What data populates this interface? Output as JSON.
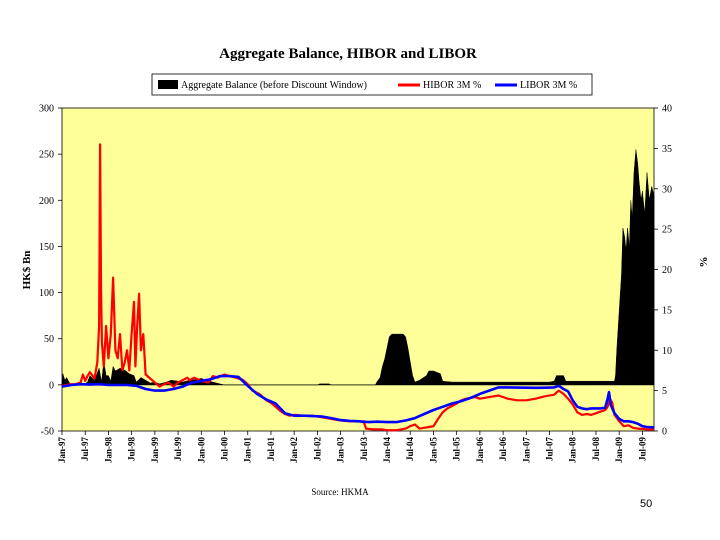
{
  "page_number": "50",
  "chart_data": {
    "type": "area+line",
    "title": "Aggregate Balance, HIBOR and LIBOR",
    "source": "Source: HKMA",
    "ylabel_left": "HK$ Bn",
    "ylabel_right": "%",
    "ylim_left": [
      -50,
      300
    ],
    "ylim_right": [
      0,
      40
    ],
    "yticks_left": [
      "300",
      "250",
      "200",
      "150",
      "100",
      "50",
      "0",
      "-50"
    ],
    "yticks_right": [
      "40",
      "35",
      "30",
      "25",
      "20",
      "15",
      "10",
      "5",
      "0"
    ],
    "x_tick_labels": [
      "Jan-97",
      "Jul-97",
      "Jan-98",
      "Jul-98",
      "Jan-99",
      "Jul-99",
      "Jan-00",
      "Jul-00",
      "Jan-01",
      "Jul-01",
      "Jan-02",
      "Jul-02",
      "Jan-03",
      "Jul-03",
      "Jan-04",
      "Jul-04",
      "Jan-05",
      "Jul-05",
      "Jan-06",
      "Jul-06",
      "Jan-07",
      "Jul-07",
      "Jan-08",
      "Jul-08",
      "Jan-09",
      "Jul-09"
    ],
    "x_range": [
      1997.0,
      2009.75
    ],
    "legend": [
      "Aggregate Balance (before Discount Window)",
      "HIBOR 3M %",
      "LIBOR 3M %"
    ],
    "colors": {
      "aggregate": "#000000",
      "hibor": "#ff0000",
      "libor": "#0000ff",
      "plot_bg": "#ffff99"
    },
    "series": [
      {
        "name": "Aggregate Balance (before Discount Window)",
        "axis": "left",
        "points": [
          [
            1997.0,
            0
          ],
          [
            1997.02,
            12
          ],
          [
            1997.06,
            5
          ],
          [
            1997.1,
            8
          ],
          [
            1997.15,
            3
          ],
          [
            1997.2,
            0
          ],
          [
            1997.45,
            0
          ],
          [
            1997.55,
            3
          ],
          [
            1997.6,
            10
          ],
          [
            1997.7,
            5
          ],
          [
            1997.8,
            18
          ],
          [
            1997.85,
            3
          ],
          [
            1997.9,
            25
          ],
          [
            1997.95,
            10
          ],
          [
            1998.0,
            10
          ],
          [
            1998.05,
            4
          ],
          [
            1998.1,
            20
          ],
          [
            1998.15,
            15
          ],
          [
            1998.25,
            18
          ],
          [
            1998.35,
            16
          ],
          [
            1998.45,
            12
          ],
          [
            1998.55,
            10
          ],
          [
            1998.6,
            3
          ],
          [
            1998.7,
            8
          ],
          [
            1998.8,
            5
          ],
          [
            1998.9,
            2
          ],
          [
            1999.0,
            3
          ],
          [
            1999.1,
            1
          ],
          [
            1999.25,
            3
          ],
          [
            1999.35,
            5
          ],
          [
            1999.5,
            4
          ],
          [
            1999.6,
            3
          ],
          [
            1999.75,
            5
          ],
          [
            1999.9,
            6
          ],
          [
            2000.0,
            7
          ],
          [
            2000.1,
            5
          ],
          [
            2000.25,
            3
          ],
          [
            2000.4,
            1
          ],
          [
            2000.5,
            0
          ],
          [
            2002.5,
            0
          ],
          [
            2002.55,
            1
          ],
          [
            2002.75,
            1
          ],
          [
            2002.8,
            0
          ],
          [
            2003.75,
            0
          ],
          [
            2003.78,
            3
          ],
          [
            2003.85,
            8
          ],
          [
            2003.9,
            20
          ],
          [
            2003.95,
            28
          ],
          [
            2004.0,
            40
          ],
          [
            2004.05,
            52
          ],
          [
            2004.1,
            55
          ],
          [
            2004.35,
            55
          ],
          [
            2004.4,
            52
          ],
          [
            2004.45,
            40
          ],
          [
            2004.5,
            25
          ],
          [
            2004.55,
            10
          ],
          [
            2004.6,
            3
          ],
          [
            2004.7,
            5
          ],
          [
            2004.85,
            10
          ],
          [
            2004.9,
            15
          ],
          [
            2005.0,
            15
          ],
          [
            2005.15,
            12
          ],
          [
            2005.2,
            4
          ],
          [
            2005.4,
            3
          ],
          [
            2005.5,
            3
          ],
          [
            2007.5,
            3
          ],
          [
            2007.6,
            4
          ],
          [
            2007.65,
            10
          ],
          [
            2007.7,
            10
          ],
          [
            2007.8,
            10
          ],
          [
            2007.85,
            4
          ],
          [
            2008.9,
            4
          ],
          [
            2008.92,
            10
          ],
          [
            2008.95,
            40
          ],
          [
            2009.0,
            80
          ],
          [
            2009.05,
            120
          ],
          [
            2009.08,
            170
          ],
          [
            2009.12,
            160
          ],
          [
            2009.15,
            145
          ],
          [
            2009.18,
            170
          ],
          [
            2009.22,
            150
          ],
          [
            2009.25,
            200
          ],
          [
            2009.28,
            180
          ],
          [
            2009.32,
            230
          ],
          [
            2009.36,
            255
          ],
          [
            2009.4,
            240
          ],
          [
            2009.43,
            220
          ],
          [
            2009.47,
            200
          ],
          [
            2009.5,
            210
          ],
          [
            2009.55,
            185
          ],
          [
            2009.6,
            230
          ],
          [
            2009.65,
            200
          ],
          [
            2009.7,
            215
          ],
          [
            2009.75,
            205
          ]
        ]
      },
      {
        "name": "HIBOR 3M %",
        "axis": "right",
        "points": [
          [
            1997.0,
            5.6
          ],
          [
            1997.1,
            5.7
          ],
          [
            1997.2,
            5.8
          ],
          [
            1997.3,
            5.8
          ],
          [
            1997.4,
            6.0
          ],
          [
            1997.45,
            7.0
          ],
          [
            1997.5,
            6.2
          ],
          [
            1997.55,
            6.8
          ],
          [
            1997.6,
            7.3
          ],
          [
            1997.7,
            6.5
          ],
          [
            1997.76,
            8.5
          ],
          [
            1997.8,
            13.0
          ],
          [
            1997.82,
            35.5
          ],
          [
            1997.84,
            18.0
          ],
          [
            1997.86,
            11.0
          ],
          [
            1997.9,
            8.0
          ],
          [
            1997.95,
            13.0
          ],
          [
            1998.0,
            9.0
          ],
          [
            1998.05,
            12.0
          ],
          [
            1998.1,
            19.0
          ],
          [
            1998.15,
            10.0
          ],
          [
            1998.2,
            9.0
          ],
          [
            1998.25,
            12.0
          ],
          [
            1998.3,
            7.5
          ],
          [
            1998.35,
            8.5
          ],
          [
            1998.4,
            10.0
          ],
          [
            1998.45,
            7.5
          ],
          [
            1998.5,
            12.0
          ],
          [
            1998.55,
            16.0
          ],
          [
            1998.58,
            8.0
          ],
          [
            1998.62,
            13.0
          ],
          [
            1998.66,
            17.0
          ],
          [
            1998.7,
            10.0
          ],
          [
            1998.75,
            12.0
          ],
          [
            1998.8,
            7.0
          ],
          [
            1998.9,
            6.5
          ],
          [
            1999.0,
            6.0
          ],
          [
            1999.1,
            5.5
          ],
          [
            1999.2,
            5.8
          ],
          [
            1999.3,
            6.0
          ],
          [
            1999.4,
            5.5
          ],
          [
            1999.5,
            6.0
          ],
          [
            1999.6,
            6.3
          ],
          [
            1999.7,
            6.6
          ],
          [
            1999.75,
            6.3
          ],
          [
            1999.85,
            6.6
          ],
          [
            2000.0,
            6.2
          ],
          [
            2000.15,
            6.0
          ],
          [
            2000.25,
            6.8
          ],
          [
            2000.35,
            6.6
          ],
          [
            2000.5,
            7.0
          ],
          [
            2000.6,
            6.8
          ],
          [
            2000.75,
            6.6
          ],
          [
            2000.9,
            6.3
          ],
          [
            2001.0,
            5.8
          ],
          [
            2001.1,
            5.0
          ],
          [
            2001.25,
            4.6
          ],
          [
            2001.4,
            3.8
          ],
          [
            2001.5,
            3.5
          ],
          [
            2001.6,
            3.0
          ],
          [
            2001.7,
            2.5
          ],
          [
            2001.8,
            2.1
          ],
          [
            2001.9,
            1.9
          ],
          [
            2002.0,
            2.0
          ],
          [
            2002.2,
            1.9
          ],
          [
            2002.4,
            1.9
          ],
          [
            2002.6,
            1.7
          ],
          [
            2002.8,
            1.5
          ],
          [
            2003.0,
            1.3
          ],
          [
            2003.2,
            1.2
          ],
          [
            2003.4,
            1.2
          ],
          [
            2003.5,
            1.1
          ],
          [
            2003.55,
            0.3
          ],
          [
            2003.7,
            0.2
          ],
          [
            2003.9,
            0.2
          ],
          [
            2004.0,
            0.1
          ],
          [
            2004.2,
            0.1
          ],
          [
            2004.4,
            0.3
          ],
          [
            2004.5,
            0.6
          ],
          [
            2004.6,
            0.8
          ],
          [
            2004.7,
            0.3
          ],
          [
            2004.8,
            0.4
          ],
          [
            2004.9,
            0.5
          ],
          [
            2005.0,
            0.6
          ],
          [
            2005.1,
            1.5
          ],
          [
            2005.2,
            2.3
          ],
          [
            2005.3,
            2.8
          ],
          [
            2005.4,
            3.1
          ],
          [
            2005.5,
            3.4
          ],
          [
            2005.6,
            3.8
          ],
          [
            2005.7,
            4.0
          ],
          [
            2005.8,
            4.1
          ],
          [
            2005.9,
            4.2
          ],
          [
            2006.0,
            4.0
          ],
          [
            2006.2,
            4.2
          ],
          [
            2006.4,
            4.4
          ],
          [
            2006.6,
            4.0
          ],
          [
            2006.8,
            3.8
          ],
          [
            2007.0,
            3.8
          ],
          [
            2007.2,
            4.0
          ],
          [
            2007.4,
            4.3
          ],
          [
            2007.6,
            4.5
          ],
          [
            2007.7,
            5.0
          ],
          [
            2007.8,
            4.6
          ],
          [
            2007.9,
            4.0
          ],
          [
            2008.0,
            3.3
          ],
          [
            2008.1,
            2.3
          ],
          [
            2008.2,
            2.0
          ],
          [
            2008.3,
            2.1
          ],
          [
            2008.4,
            2.0
          ],
          [
            2008.5,
            2.2
          ],
          [
            2008.6,
            2.4
          ],
          [
            2008.7,
            2.6
          ],
          [
            2008.75,
            3.0
          ],
          [
            2008.8,
            4.0
          ],
          [
            2008.85,
            3.5
          ],
          [
            2008.9,
            2.0
          ],
          [
            2009.0,
            1.2
          ],
          [
            2009.1,
            0.6
          ],
          [
            2009.2,
            0.7
          ],
          [
            2009.3,
            0.4
          ],
          [
            2009.4,
            0.3
          ],
          [
            2009.5,
            0.25
          ],
          [
            2009.6,
            0.2
          ],
          [
            2009.75,
            0.2
          ]
        ]
      },
      {
        "name": "LIBOR 3M %",
        "axis": "right",
        "points": [
          [
            1997.0,
            5.5
          ],
          [
            1997.2,
            5.7
          ],
          [
            1997.4,
            5.8
          ],
          [
            1997.6,
            5.75
          ],
          [
            1997.8,
            5.8
          ],
          [
            1998.0,
            5.7
          ],
          [
            1998.2,
            5.7
          ],
          [
            1998.4,
            5.7
          ],
          [
            1998.6,
            5.6
          ],
          [
            1998.8,
            5.2
          ],
          [
            1999.0,
            5.0
          ],
          [
            1999.2,
            5.0
          ],
          [
            1999.4,
            5.2
          ],
          [
            1999.6,
            5.5
          ],
          [
            1999.8,
            6.0
          ],
          [
            2000.0,
            6.2
          ],
          [
            2000.2,
            6.4
          ],
          [
            2000.4,
            6.8
          ],
          [
            2000.6,
            6.8
          ],
          [
            2000.8,
            6.7
          ],
          [
            2001.0,
            5.6
          ],
          [
            2001.2,
            4.6
          ],
          [
            2001.4,
            3.9
          ],
          [
            2001.6,
            3.4
          ],
          [
            2001.8,
            2.2
          ],
          [
            2002.0,
            1.9
          ],
          [
            2002.2,
            1.9
          ],
          [
            2002.4,
            1.85
          ],
          [
            2002.6,
            1.8
          ],
          [
            2002.8,
            1.6
          ],
          [
            2003.0,
            1.35
          ],
          [
            2003.2,
            1.25
          ],
          [
            2003.4,
            1.2
          ],
          [
            2003.6,
            1.1
          ],
          [
            2003.8,
            1.15
          ],
          [
            2004.0,
            1.1
          ],
          [
            2004.2,
            1.1
          ],
          [
            2004.4,
            1.3
          ],
          [
            2004.6,
            1.6
          ],
          [
            2004.8,
            2.1
          ],
          [
            2005.0,
            2.6
          ],
          [
            2005.2,
            3.0
          ],
          [
            2005.4,
            3.4
          ],
          [
            2005.6,
            3.7
          ],
          [
            2005.8,
            4.1
          ],
          [
            2006.0,
            4.6
          ],
          [
            2006.2,
            5.0
          ],
          [
            2006.4,
            5.4
          ],
          [
            2006.6,
            5.4
          ],
          [
            2006.8,
            5.37
          ],
          [
            2007.0,
            5.36
          ],
          [
            2007.2,
            5.35
          ],
          [
            2007.4,
            5.36
          ],
          [
            2007.6,
            5.4
          ],
          [
            2007.7,
            5.6
          ],
          [
            2007.8,
            5.2
          ],
          [
            2007.9,
            4.9
          ],
          [
            2008.0,
            3.8
          ],
          [
            2008.1,
            3.0
          ],
          [
            2008.2,
            2.8
          ],
          [
            2008.3,
            2.7
          ],
          [
            2008.4,
            2.8
          ],
          [
            2008.5,
            2.8
          ],
          [
            2008.6,
            2.8
          ],
          [
            2008.7,
            2.9
          ],
          [
            2008.75,
            4.0
          ],
          [
            2008.78,
            4.8
          ],
          [
            2008.82,
            3.2
          ],
          [
            2008.9,
            2.2
          ],
          [
            2009.0,
            1.5
          ],
          [
            2009.1,
            1.2
          ],
          [
            2009.2,
            1.2
          ],
          [
            2009.3,
            1.1
          ],
          [
            2009.4,
            0.9
          ],
          [
            2009.5,
            0.6
          ],
          [
            2009.6,
            0.5
          ],
          [
            2009.75,
            0.45
          ]
        ]
      }
    ]
  }
}
